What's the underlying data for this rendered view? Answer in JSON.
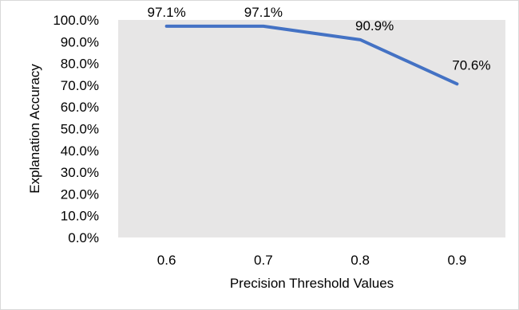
{
  "chart_data": {
    "type": "line",
    "categories": [
      "0.6",
      "0.7",
      "0.8",
      "0.9"
    ],
    "series": [
      {
        "values": [
          97.1,
          97.1,
          90.9,
          70.6
        ],
        "labels": [
          "97.1%",
          "97.1%",
          "90.9%",
          "70.6%"
        ],
        "color": "#4472c4"
      }
    ],
    "xlabel": "Precision Threshold Values",
    "ylabel": "Explanation Accuracy",
    "ylim": [
      0,
      100
    ],
    "yticks": [
      "0.0%",
      "10.0%",
      "20.0%",
      "30.0%",
      "40.0%",
      "50.0%",
      "60.0%",
      "70.0%",
      "80.0%",
      "90.0%",
      "100.0%"
    ],
    "plot_background": "#e7e6e6",
    "grid": false,
    "legend": "none"
  }
}
